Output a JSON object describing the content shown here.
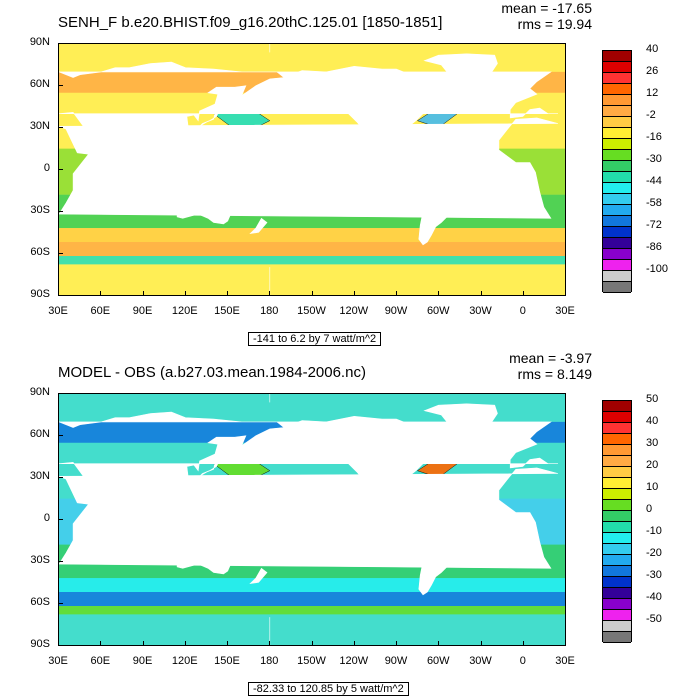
{
  "panels": [
    {
      "title": "SENH_F b.e20.BHIST.f09_g16.20thC.125.01 [1850-1851]",
      "mean": "mean = -17.65",
      "rms": "rms = 19.94",
      "range_note": "-141 to 6.2 by 7 watt/m^2",
      "colorbar_labels": [
        "40",
        "26",
        "12",
        "-2",
        "-16",
        "-30",
        "-44",
        "-58",
        "-72",
        "-86",
        "-100"
      ],
      "colorbar_colors": [
        "#a00000",
        "#dd0000",
        "#ff3333",
        "#ff6600",
        "#ff9933",
        "#ffaa44",
        "#ffcc44",
        "#ffee33",
        "#ccee00",
        "#66dd22",
        "#33cc66",
        "#22ddaa",
        "#22eeee",
        "#33ccee",
        "#22aaee",
        "#1177dd",
        "#0033cc",
        "#330099",
        "#8800cc",
        "#ee22ee",
        "#cccccc",
        "#777777"
      ],
      "ocean_color": "#ffee55",
      "blob_colors": [
        "#88dd33",
        "#33cc55",
        "#ffcc44",
        "#ffaa44",
        "#22ddbb",
        "#44bbee"
      ]
    },
    {
      "title": "MODEL - OBS (a.b27.03.mean.1984-2006.nc)",
      "mean": "mean = -3.97",
      "rms": "rms = 8.149",
      "range_note": "-82.33 to 120.85 by 5 watt/m^2",
      "colorbar_labels": [
        "50",
        "40",
        "30",
        "20",
        "10",
        "0",
        "-10",
        "-20",
        "-30",
        "-40",
        "-50"
      ],
      "colorbar_colors": [
        "#a00000",
        "#dd0000",
        "#ff3333",
        "#ff6600",
        "#ff9933",
        "#ffaa44",
        "#ffcc44",
        "#ffee33",
        "#ccee00",
        "#66dd22",
        "#33cc66",
        "#22ddaa",
        "#22eeee",
        "#33ccee",
        "#22aaee",
        "#1177dd",
        "#0033cc",
        "#330099",
        "#8800cc",
        "#ee22ee",
        "#cccccc",
        "#777777"
      ],
      "ocean_color": "#44ddcc",
      "blob_colors": [
        "#44ccee",
        "#33cc66",
        "#22eeee",
        "#1177dd",
        "#66dd22",
        "#ff6600"
      ]
    }
  ],
  "lat_labels": [
    "90N",
    "60N",
    "30N",
    "0",
    "30S",
    "60S",
    "90S"
  ],
  "lon_labels": [
    "30E",
    "60E",
    "90E",
    "120E",
    "150E",
    "180",
    "150W",
    "120W",
    "90W",
    "60W",
    "30W",
    "0",
    "30E"
  ]
}
